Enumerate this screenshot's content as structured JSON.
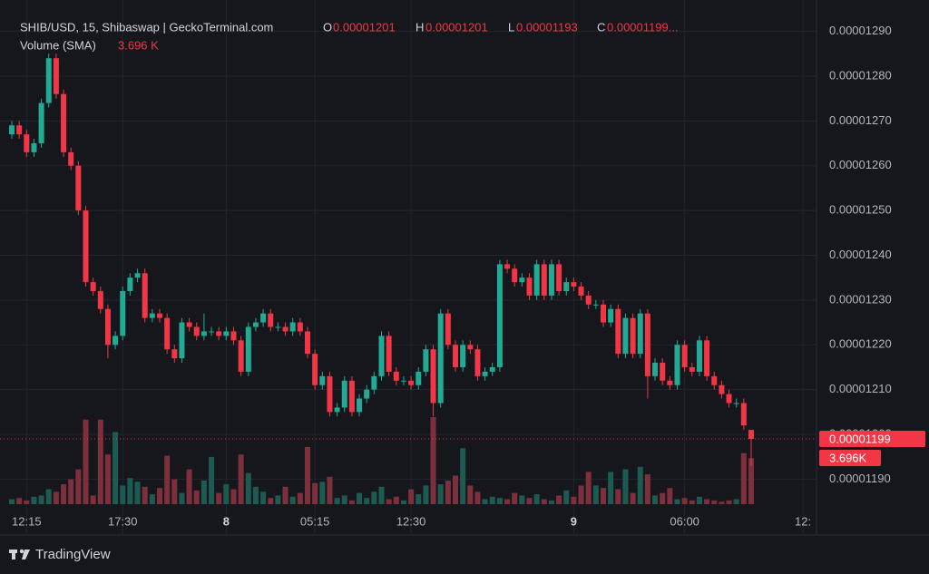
{
  "chart_data": {
    "type": "candlestick",
    "title": "SHIB/USD, 15, Shibaswap | GeckoTerminal.com",
    "legend_letters": [
      "O",
      "H",
      "L",
      "C"
    ],
    "close_legend": "0.00001199...",
    "volume_title": "Volume (SMA)",
    "volume_legend": "3.696 K",
    "volume_last_label": "3.696K",
    "brand": "TradingView",
    "up_color": "#22ab94",
    "down_color": "#f23645",
    "volume_up_color": "#1d5b52",
    "volume_down_color": "#7d2f3c",
    "grid": true,
    "ylim": [
      1.183e-05,
      1.297e-05
    ],
    "yticks": [
      {
        "value": 1.19e-05,
        "label": "0.00001190"
      },
      {
        "value": 1.2e-05,
        "label": "0.00001200"
      },
      {
        "value": 1.21e-05,
        "label": "0.00001210"
      },
      {
        "value": 1.22e-05,
        "label": "0.00001220"
      },
      {
        "value": 1.23e-05,
        "label": "0.00001230"
      },
      {
        "value": 1.24e-05,
        "label": "0.00001240"
      },
      {
        "value": 1.25e-05,
        "label": "0.00001250"
      },
      {
        "value": 1.26e-05,
        "label": "0.00001260"
      },
      {
        "value": 1.27e-05,
        "label": "0.00001270"
      },
      {
        "value": 1.28e-05,
        "label": "0.00001280"
      },
      {
        "value": 1.29e-05,
        "label": "0.00001290"
      }
    ],
    "categories": [
      null,
      null,
      "12:15",
      null,
      null,
      null,
      null,
      null,
      null,
      null,
      null,
      null,
      null,
      null,
      null,
      "17:30",
      null,
      null,
      null,
      null,
      null,
      null,
      null,
      null,
      null,
      null,
      null,
      null,
      null,
      "8",
      null,
      null,
      null,
      null,
      null,
      null,
      null,
      null,
      null,
      null,
      null,
      "05:15",
      null,
      null,
      null,
      null,
      null,
      null,
      null,
      null,
      null,
      null,
      null,
      null,
      "12:30",
      null,
      null,
      null,
      null,
      null,
      null,
      null,
      null,
      null,
      null,
      null,
      null,
      null,
      null,
      null,
      null,
      null,
      null,
      null,
      null,
      null,
      "9",
      null,
      null,
      null,
      null,
      null,
      null,
      null,
      null,
      null,
      null,
      null,
      null,
      null,
      null,
      "06:00",
      null,
      null,
      null,
      null,
      null,
      null,
      null,
      null,
      null,
      null,
      null,
      null,
      null,
      null,
      null,
      "12:"
    ],
    "open": [
      1.267e-05,
      1.269e-05,
      1.267e-05,
      1.263e-05,
      1.265e-05,
      1.274e-05,
      1.284e-05,
      1.276e-05,
      1.263e-05,
      1.26e-05,
      1.25e-05,
      1.234e-05,
      1.232e-05,
      1.228e-05,
      1.22e-05,
      1.222e-05,
      1.232e-05,
      1.235e-05,
      1.236e-05,
      1.226e-05,
      1.227e-05,
      1.226e-05,
      1.219e-05,
      1.217e-05,
      1.225e-05,
      1.224e-05,
      1.222e-05,
      1.223e-05,
      1.223e-05,
      1.222e-05,
      1.223e-05,
      1.221e-05,
      1.214e-05,
      1.224e-05,
      1.225e-05,
      1.227e-05,
      1.224e-05,
      1.224e-05,
      1.223e-05,
      1.225e-05,
      1.223e-05,
      1.218e-05,
      1.211e-05,
      1.213e-05,
      1.205e-05,
      1.206e-05,
      1.212e-05,
      1.205e-05,
      1.208e-05,
      1.21e-05,
      1.213e-05,
      1.222e-05,
      1.214e-05,
      1.212e-05,
      1.212e-05,
      1.211e-05,
      1.214e-05,
      1.219e-05,
      1.207e-05,
      1.227e-05,
      1.22e-05,
      1.215e-05,
      1.22e-05,
      1.219e-05,
      1.213e-05,
      1.214e-05,
      1.215e-05,
      1.238e-05,
      1.237e-05,
      1.234e-05,
      1.235e-05,
      1.231e-05,
      1.238e-05,
      1.231e-05,
      1.238e-05,
      1.232e-05,
      1.234e-05,
      1.233e-05,
      1.231e-05,
      1.229e-05,
      1.229e-05,
      1.225e-05,
      1.228e-05,
      1.218e-05,
      1.226e-05,
      1.218e-05,
      1.227e-05,
      1.213e-05,
      1.216e-05,
      1.212e-05,
      1.211e-05,
      1.22e-05,
      1.215e-05,
      1.214e-05,
      1.221e-05,
      1.213e-05,
      1.211e-05,
      1.209e-05,
      1.207e-05,
      1.207e-05,
      1.201e-05,
      null,
      null,
      null,
      null,
      null,
      null,
      null
    ],
    "high": [
      1.27e-05,
      1.27e-05,
      1.268e-05,
      1.266e-05,
      1.275e-05,
      1.285e-05,
      1.285e-05,
      1.277e-05,
      1.264e-05,
      1.261e-05,
      1.251e-05,
      1.235e-05,
      1.233e-05,
      1.229e-05,
      1.223e-05,
      1.233e-05,
      1.236e-05,
      1.237e-05,
      1.237e-05,
      1.228e-05,
      1.228e-05,
      1.227e-05,
      1.22e-05,
      1.226e-05,
      1.226e-05,
      1.225e-05,
      1.227e-05,
      1.224e-05,
      1.224e-05,
      1.224e-05,
      1.224e-05,
      1.222e-05,
      1.225e-05,
      1.226e-05,
      1.228e-05,
      1.228e-05,
      1.225e-05,
      1.225e-05,
      1.226e-05,
      1.226e-05,
      1.224e-05,
      1.219e-05,
      1.214e-05,
      1.214e-05,
      1.207e-05,
      1.213e-05,
      1.213e-05,
      1.209e-05,
      1.211e-05,
      1.214e-05,
      1.223e-05,
      1.223e-05,
      1.215e-05,
      1.213e-05,
      1.213e-05,
      1.215e-05,
      1.22e-05,
      1.22e-05,
      1.228e-05,
      1.228e-05,
      1.221e-05,
      1.221e-05,
      1.221e-05,
      1.22e-05,
      1.215e-05,
      1.216e-05,
      1.239e-05,
      1.239e-05,
      1.238e-05,
      1.236e-05,
      1.236e-05,
      1.239e-05,
      1.239e-05,
      1.239e-05,
      1.239e-05,
      1.235e-05,
      1.235e-05,
      1.234e-05,
      1.232e-05,
      1.23e-05,
      1.23e-05,
      1.229e-05,
      1.229e-05,
      1.227e-05,
      1.227e-05,
      1.228e-05,
      1.228e-05,
      1.217e-05,
      1.217e-05,
      1.213e-05,
      1.221e-05,
      1.221e-05,
      1.216e-05,
      1.222e-05,
      1.222e-05,
      1.214e-05,
      1.212e-05,
      1.21e-05,
      1.208e-05,
      1.208e-05,
      1.201e-05,
      null,
      null,
      null,
      null,
      null,
      null,
      null
    ],
    "low": [
      1.266e-05,
      1.266e-05,
      1.262e-05,
      1.262e-05,
      1.264e-05,
      1.273e-05,
      1.275e-05,
      1.262e-05,
      1.259e-05,
      1.249e-05,
      1.233e-05,
      1.231e-05,
      1.227e-05,
      1.217e-05,
      1.219e-05,
      1.221e-05,
      1.231e-05,
      1.234e-05,
      1.225e-05,
      1.225e-05,
      1.225e-05,
      1.218e-05,
      1.216e-05,
      1.216e-05,
      1.223e-05,
      1.221e-05,
      1.221e-05,
      1.222e-05,
      1.221e-05,
      1.221e-05,
      1.22e-05,
      1.213e-05,
      1.213e-05,
      1.223e-05,
      1.224e-05,
      1.223e-05,
      1.223e-05,
      1.222e-05,
      1.222e-05,
      1.222e-05,
      1.217e-05,
      1.21e-05,
      1.21e-05,
      1.204e-05,
      1.204e-05,
      1.205e-05,
      1.204e-05,
      1.204e-05,
      1.207e-05,
      1.209e-05,
      1.212e-05,
      1.213e-05,
      1.211e-05,
      1.211e-05,
      1.21e-05,
      1.21e-05,
      1.213e-05,
      1.204e-05,
      1.206e-05,
      1.219e-05,
      1.214e-05,
      1.214e-05,
      1.218e-05,
      1.212e-05,
      1.212e-05,
      1.213e-05,
      1.214e-05,
      1.236e-05,
      1.233e-05,
      1.233e-05,
      1.23e-05,
      1.23e-05,
      1.23e-05,
      1.23e-05,
      1.231e-05,
      1.231e-05,
      1.232e-05,
      1.23e-05,
      1.228e-05,
      1.228e-05,
      1.224e-05,
      1.224e-05,
      1.217e-05,
      1.217e-05,
      1.217e-05,
      1.217e-05,
      1.208e-05,
      1.212e-05,
      1.211e-05,
      1.21e-05,
      1.21e-05,
      1.214e-05,
      1.213e-05,
      1.213e-05,
      1.212e-05,
      1.21e-05,
      1.208e-05,
      1.206e-05,
      1.206e-05,
      1.201e-05,
      1.193e-05,
      null,
      null,
      null,
      null,
      null,
      null,
      null
    ],
    "close": [
      1.269e-05,
      1.267e-05,
      1.263e-05,
      1.265e-05,
      1.274e-05,
      1.284e-05,
      1.276e-05,
      1.263e-05,
      1.26e-05,
      1.25e-05,
      1.234e-05,
      1.232e-05,
      1.228e-05,
      1.22e-05,
      1.222e-05,
      1.232e-05,
      1.235e-05,
      1.236e-05,
      1.226e-05,
      1.227e-05,
      1.226e-05,
      1.219e-05,
      1.217e-05,
      1.225e-05,
      1.224e-05,
      1.222e-05,
      1.223e-05,
      1.223e-05,
      1.222e-05,
      1.223e-05,
      1.221e-05,
      1.214e-05,
      1.224e-05,
      1.225e-05,
      1.227e-05,
      1.224e-05,
      1.224e-05,
      1.223e-05,
      1.225e-05,
      1.223e-05,
      1.218e-05,
      1.211e-05,
      1.213e-05,
      1.205e-05,
      1.206e-05,
      1.212e-05,
      1.205e-05,
      1.208e-05,
      1.21e-05,
      1.213e-05,
      1.222e-05,
      1.214e-05,
      1.212e-05,
      1.212e-05,
      1.211e-05,
      1.214e-05,
      1.219e-05,
      1.207e-05,
      1.227e-05,
      1.22e-05,
      1.215e-05,
      1.22e-05,
      1.219e-05,
      1.213e-05,
      1.214e-05,
      1.215e-05,
      1.238e-05,
      1.237e-05,
      1.234e-05,
      1.235e-05,
      1.231e-05,
      1.238e-05,
      1.231e-05,
      1.238e-05,
      1.232e-05,
      1.234e-05,
      1.233e-05,
      1.231e-05,
      1.229e-05,
      1.229e-05,
      1.225e-05,
      1.228e-05,
      1.218e-05,
      1.226e-05,
      1.218e-05,
      1.227e-05,
      1.213e-05,
      1.216e-05,
      1.212e-05,
      1.211e-05,
      1.22e-05,
      1.215e-05,
      1.214e-05,
      1.221e-05,
      1.213e-05,
      1.211e-05,
      1.209e-05,
      1.207e-05,
      1.207e-05,
      1.202e-05,
      1.199e-05,
      null,
      null,
      null,
      null,
      null,
      null,
      null
    ],
    "volume": [
      400,
      500,
      300,
      600,
      700,
      1200,
      1000,
      1600,
      2000,
      2800,
      6800,
      700,
      6800,
      4000,
      5800,
      1500,
      2100,
      1800,
      1400,
      800,
      1300,
      3900,
      2000,
      900,
      2800,
      1100,
      1900,
      3800,
      900,
      1600,
      1200,
      4000,
      2500,
      1400,
      1000,
      500,
      700,
      1400,
      600,
      900,
      4600,
      1700,
      1800,
      2200,
      500,
      700,
      300,
      900,
      500,
      1000,
      1400,
      400,
      600,
      300,
      1200,
      800,
      1500,
      7000,
      1600,
      1900,
      2300,
      4500,
      1500,
      1000,
      400,
      600,
      500,
      400,
      900,
      700,
      500,
      800,
      400,
      300,
      700,
      1100,
      600,
      1500,
      2600,
      1500,
      1300,
      2600,
      1200,
      2800,
      900,
      3000,
      2400,
      700,
      900,
      1300,
      400,
      500,
      300,
      600,
      400,
      300,
      200,
      300,
      400,
      4100,
      3696,
      null,
      null,
      null,
      null,
      null,
      null,
      null
    ]
  }
}
